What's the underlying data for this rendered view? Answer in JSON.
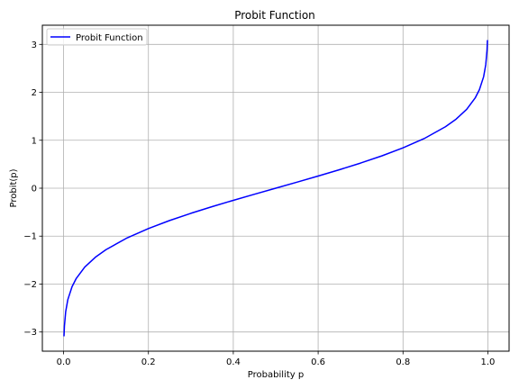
{
  "chart_data": {
    "type": "line",
    "title": "Probit Function",
    "xlabel": "Probability p",
    "ylabel": "Probit(p)",
    "xlim": [
      -0.05,
      1.05
    ],
    "ylim": [
      -3.4,
      3.4
    ],
    "xticks": [
      0.0,
      0.2,
      0.4,
      0.6,
      0.8,
      1.0
    ],
    "xtick_labels": [
      "0.0",
      "0.2",
      "0.4",
      "0.6",
      "0.8",
      "1.0"
    ],
    "yticks": [
      -3,
      -2,
      -1,
      0,
      1,
      2,
      3
    ],
    "ytick_labels": [
      "−3",
      "−2",
      "−1",
      "0",
      "1",
      "2",
      "3"
    ],
    "grid": true,
    "legend_position": "upper-left",
    "series": [
      {
        "name": "Probit Function",
        "color": "#0000ff",
        "x": [
          0.001,
          0.002,
          0.005,
          0.01,
          0.02,
          0.03,
          0.05,
          0.075,
          0.1,
          0.15,
          0.2,
          0.25,
          0.3,
          0.35,
          0.4,
          0.45,
          0.5,
          0.55,
          0.6,
          0.65,
          0.7,
          0.75,
          0.8,
          0.85,
          0.9,
          0.925,
          0.95,
          0.97,
          0.98,
          0.99,
          0.995,
          0.998,
          0.999
        ],
        "y": [
          -3.09,
          -2.878,
          -2.576,
          -2.326,
          -2.054,
          -1.881,
          -1.645,
          -1.44,
          -1.282,
          -1.036,
          -0.842,
          -0.674,
          -0.524,
          -0.385,
          -0.253,
          -0.126,
          0.0,
          0.126,
          0.253,
          0.385,
          0.524,
          0.674,
          0.842,
          1.036,
          1.282,
          1.44,
          1.645,
          1.881,
          2.054,
          2.326,
          2.576,
          2.878,
          3.09
        ]
      }
    ]
  }
}
